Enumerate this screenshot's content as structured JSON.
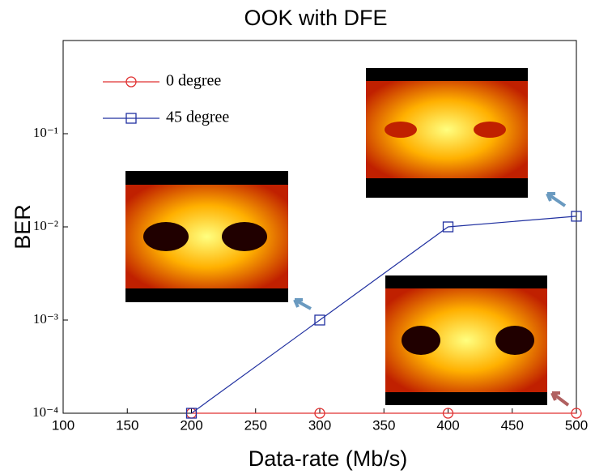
{
  "chart_data": {
    "type": "line",
    "title": "OOK with DFE",
    "x_label": "Data-rate (Mb/s)",
    "y_label": "BER",
    "log_y": true,
    "xlim": [
      100,
      500
    ],
    "ylim": [
      0.0001,
      1
    ],
    "xticks": [
      100,
      150,
      200,
      250,
      300,
      350,
      400,
      450,
      500
    ],
    "yticks": [
      {
        "value": 0.0001,
        "label": "10⁻⁴"
      },
      {
        "value": 0.001,
        "label": "10⁻³"
      },
      {
        "value": 0.01,
        "label": "10⁻²"
      },
      {
        "value": 0.1,
        "label": "10⁻¹"
      }
    ],
    "series": [
      {
        "name": "0 degree",
        "color": "#e03030",
        "marker": "circle",
        "x": [
          200,
          300,
          400,
          500
        ],
        "values": [
          0.0001,
          0.0001,
          0.0001,
          0.0001
        ]
      },
      {
        "name": "45 degree",
        "color": "#2030a0",
        "marker": "square",
        "x": [
          200,
          300,
          400,
          500
        ],
        "values": [
          0.0001,
          0.001,
          0.01,
          0.013
        ]
      }
    ],
    "legend": "upper left"
  }
}
